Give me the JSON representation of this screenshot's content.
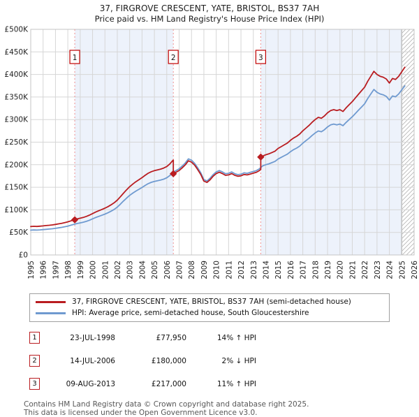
{
  "title": "37, FIRGROVE CRESCENT, YATE, BRISTOL, BS37 7AH",
  "subtitle": "Price paid vs. HM Land Registry's House Price Index (HPI)",
  "colors": {
    "price_line": "#b91c20",
    "hpi_line": "#6f9ad0",
    "sale_dashed_line": "#f0908f",
    "shade_band": "#edf2fb",
    "grid": "#d6d6d6",
    "plot_border": "#c4c4c4",
    "hatch_line": "#b5b5b5",
    "hatch_edge": "#8f8f8f",
    "axis_text": "#222222",
    "marker_box_border": "#c00000"
  },
  "chart_data": {
    "type": "line",
    "title": "37, FIRGROVE CRESCENT, YATE, BRISTOL, BS37 7AH",
    "subtitle": "Price paid vs. HM Land Registry's House Price Index (HPI)",
    "xlabel": "",
    "ylabel": "Price (GBP)",
    "units": "thousands of pounds",
    "xlim": [
      1995,
      2026
    ],
    "ylim": [
      0,
      500
    ],
    "grid": true,
    "legend_position": "bottom",
    "x_ticks": [
      1995,
      1996,
      1997,
      1998,
      1999,
      2000,
      2001,
      2002,
      2003,
      2004,
      2005,
      2006,
      2007,
      2008,
      2009,
      2010,
      2011,
      2012,
      2013,
      2014,
      2015,
      2016,
      2017,
      2018,
      2019,
      2020,
      2021,
      2022,
      2023,
      2024,
      2025,
      2026
    ],
    "y_ticks": [
      [
        0,
        "£0"
      ],
      [
        50,
        "£50K"
      ],
      [
        100,
        "£100K"
      ],
      [
        150,
        "£150K"
      ],
      [
        200,
        "£200K"
      ],
      [
        250,
        "£250K"
      ],
      [
        300,
        "£300K"
      ],
      [
        350,
        "£350K"
      ],
      [
        400,
        "£400K"
      ],
      [
        450,
        "£450K"
      ],
      [
        500,
        "£500K"
      ]
    ],
    "shaded_bands": [
      [
        1998.56,
        2006.53
      ],
      [
        2013.6,
        2025.0
      ]
    ],
    "future_hatch": [
      2025.0,
      2026.0
    ],
    "sales": [
      {
        "num": "1",
        "year": 1998.56,
        "value": 77.95
      },
      {
        "num": "2",
        "year": 2006.53,
        "value": 180
      },
      {
        "num": "3",
        "year": 2013.6,
        "value": 217
      }
    ],
    "series": [
      {
        "id": "price_paid",
        "name": "37, FIRGROVE CRESCENT, YATE, BRISTOL, BS37 7AH (semi-detached house)",
        "color": "#b91c20",
        "points": [
          [
            1995.0,
            63.0
          ],
          [
            1995.25,
            63.5
          ],
          [
            1995.5,
            63.1
          ],
          [
            1995.75,
            63.7
          ],
          [
            1996.0,
            64.4
          ],
          [
            1996.25,
            65.1
          ],
          [
            1996.5,
            65.8
          ],
          [
            1996.75,
            66.6
          ],
          [
            1997.0,
            67.6
          ],
          [
            1997.25,
            68.9
          ],
          [
            1997.5,
            70.1
          ],
          [
            1997.75,
            71.7
          ],
          [
            1998.0,
            73.3
          ],
          [
            1998.25,
            75.6
          ],
          [
            1998.5,
            77.9
          ],
          [
            1998.75,
            79.8
          ],
          [
            1999.0,
            81.4
          ],
          [
            1999.25,
            83.2
          ],
          [
            1999.5,
            85.4
          ],
          [
            1999.75,
            88.2
          ],
          [
            2000.0,
            91.7
          ],
          [
            2000.25,
            95.1
          ],
          [
            2000.5,
            98.0
          ],
          [
            2000.75,
            100.8
          ],
          [
            2001.0,
            103.7
          ],
          [
            2001.25,
            107.1
          ],
          [
            2001.5,
            111.2
          ],
          [
            2001.75,
            115.7
          ],
          [
            2002.0,
            121.5
          ],
          [
            2002.25,
            128.9
          ],
          [
            2002.5,
            136.9
          ],
          [
            2002.75,
            144.4
          ],
          [
            2003.0,
            151.3
          ],
          [
            2003.25,
            157.0
          ],
          [
            2003.5,
            162.2
          ],
          [
            2003.75,
            166.7
          ],
          [
            2004.0,
            171.3
          ],
          [
            2004.25,
            176.5
          ],
          [
            2004.5,
            181.1
          ],
          [
            2004.75,
            184.5
          ],
          [
            2005.0,
            186.8
          ],
          [
            2005.25,
            188.5
          ],
          [
            2005.5,
            190.2
          ],
          [
            2005.75,
            192.5
          ],
          [
            2006.0,
            196.0
          ],
          [
            2006.25,
            201.7
          ],
          [
            2006.5,
            209.7
          ],
          [
            2006.53,
            210.0
          ],
          [
            2006.53,
            180.0
          ],
          [
            2006.75,
            183.3
          ],
          [
            2007.0,
            187.2
          ],
          [
            2007.25,
            193.1
          ],
          [
            2007.5,
            199.9
          ],
          [
            2007.75,
            208.7
          ],
          [
            2008.0,
            205.8
          ],
          [
            2008.25,
            199.0
          ],
          [
            2008.5,
            189.1
          ],
          [
            2008.75,
            178.4
          ],
          [
            2009.0,
            163.7
          ],
          [
            2009.25,
            160.7
          ],
          [
            2009.5,
            166.6
          ],
          [
            2009.75,
            174.4
          ],
          [
            2010.0,
            180.3
          ],
          [
            2010.25,
            183.3
          ],
          [
            2010.5,
            180.3
          ],
          [
            2010.75,
            176.4
          ],
          [
            2011.0,
            177.4
          ],
          [
            2011.25,
            180.3
          ],
          [
            2011.5,
            176.4
          ],
          [
            2011.75,
            174.4
          ],
          [
            2012.0,
            175.4
          ],
          [
            2012.25,
            178.4
          ],
          [
            2012.5,
            177.4
          ],
          [
            2012.75,
            179.3
          ],
          [
            2013.0,
            181.3
          ],
          [
            2013.25,
            183.3
          ],
          [
            2013.5,
            187.2
          ],
          [
            2013.6,
            189.5
          ],
          [
            2013.6,
            217.0
          ],
          [
            2013.75,
            219.0
          ],
          [
            2014.0,
            222.0
          ],
          [
            2014.25,
            224.0
          ],
          [
            2014.5,
            227.0
          ],
          [
            2014.75,
            230.0
          ],
          [
            2015.0,
            236.0
          ],
          [
            2015.25,
            240.0
          ],
          [
            2015.5,
            244.0
          ],
          [
            2015.75,
            248.0
          ],
          [
            2016.0,
            254.0
          ],
          [
            2016.25,
            259.0
          ],
          [
            2016.5,
            263.0
          ],
          [
            2016.75,
            268.0
          ],
          [
            2017.0,
            275.0
          ],
          [
            2017.25,
            281.0
          ],
          [
            2017.5,
            287.0
          ],
          [
            2017.75,
            294.0
          ],
          [
            2018.0,
            300.0
          ],
          [
            2018.25,
            305.0
          ],
          [
            2018.5,
            303.0
          ],
          [
            2018.75,
            308.0
          ],
          [
            2019.0,
            315.0
          ],
          [
            2019.25,
            320.0
          ],
          [
            2019.5,
            322.0
          ],
          [
            2019.75,
            320.0
          ],
          [
            2020.0,
            322.0
          ],
          [
            2020.25,
            318.0
          ],
          [
            2020.5,
            326.0
          ],
          [
            2020.75,
            333.0
          ],
          [
            2021.0,
            340.0
          ],
          [
            2021.25,
            348.0
          ],
          [
            2021.5,
            356.0
          ],
          [
            2021.75,
            364.0
          ],
          [
            2022.0,
            372.0
          ],
          [
            2022.25,
            385.0
          ],
          [
            2022.5,
            396.0
          ],
          [
            2022.75,
            407.0
          ],
          [
            2023.0,
            400.0
          ],
          [
            2023.25,
            396.0
          ],
          [
            2023.5,
            394.0
          ],
          [
            2023.75,
            390.0
          ],
          [
            2024.0,
            381.0
          ],
          [
            2024.25,
            391.0
          ],
          [
            2024.5,
            389.0
          ],
          [
            2024.75,
            396.0
          ],
          [
            2025.0,
            406.0
          ],
          [
            2025.25,
            416.0
          ]
        ]
      },
      {
        "id": "hpi",
        "name": "HPI: Average price, semi-detached house, South Gloucestershire",
        "color": "#6f9ad0",
        "points": [
          [
            1995.0,
            55.0
          ],
          [
            1995.25,
            55.4
          ],
          [
            1995.5,
            55.1
          ],
          [
            1995.75,
            55.6
          ],
          [
            1996.0,
            56.2
          ],
          [
            1996.25,
            56.8
          ],
          [
            1996.5,
            57.4
          ],
          [
            1996.75,
            58.1
          ],
          [
            1997.0,
            59.0
          ],
          [
            1997.25,
            60.1
          ],
          [
            1997.5,
            61.2
          ],
          [
            1997.75,
            62.6
          ],
          [
            1998.0,
            64.0
          ],
          [
            1998.25,
            66.0
          ],
          [
            1998.5,
            68.0
          ],
          [
            1998.75,
            69.6
          ],
          [
            1999.0,
            71.0
          ],
          [
            1999.25,
            72.6
          ],
          [
            1999.5,
            74.5
          ],
          [
            1999.75,
            77.0
          ],
          [
            2000.0,
            80.0
          ],
          [
            2000.25,
            83.0
          ],
          [
            2000.5,
            85.5
          ],
          [
            2000.75,
            88.0
          ],
          [
            2001.0,
            90.5
          ],
          [
            2001.25,
            93.5
          ],
          [
            2001.5,
            97.0
          ],
          [
            2001.75,
            101.0
          ],
          [
            2002.0,
            106.0
          ],
          [
            2002.25,
            112.5
          ],
          [
            2002.5,
            119.5
          ],
          [
            2002.75,
            126.0
          ],
          [
            2003.0,
            132.0
          ],
          [
            2003.25,
            137.0
          ],
          [
            2003.5,
            141.5
          ],
          [
            2003.75,
            145.5
          ],
          [
            2004.0,
            149.5
          ],
          [
            2004.25,
            154.0
          ],
          [
            2004.5,
            158.0
          ],
          [
            2004.75,
            161.0
          ],
          [
            2005.0,
            163.0
          ],
          [
            2005.25,
            164.5
          ],
          [
            2005.5,
            166.0
          ],
          [
            2005.75,
            168.0
          ],
          [
            2006.0,
            171.0
          ],
          [
            2006.25,
            176.0
          ],
          [
            2006.5,
            183.0
          ],
          [
            2006.75,
            187.0
          ],
          [
            2007.0,
            191.0
          ],
          [
            2007.25,
            197.0
          ],
          [
            2007.5,
            204.0
          ],
          [
            2007.75,
            213.0
          ],
          [
            2008.0,
            210.0
          ],
          [
            2008.25,
            203.0
          ],
          [
            2008.5,
            193.0
          ],
          [
            2008.75,
            182.0
          ],
          [
            2009.0,
            167.0
          ],
          [
            2009.25,
            164.0
          ],
          [
            2009.5,
            170.0
          ],
          [
            2009.75,
            178.0
          ],
          [
            2010.0,
            184.0
          ],
          [
            2010.25,
            187.0
          ],
          [
            2010.5,
            184.0
          ],
          [
            2010.75,
            180.0
          ],
          [
            2011.0,
            181.0
          ],
          [
            2011.25,
            184.0
          ],
          [
            2011.5,
            180.0
          ],
          [
            2011.75,
            178.0
          ],
          [
            2012.0,
            179.0
          ],
          [
            2012.25,
            182.0
          ],
          [
            2012.5,
            181.0
          ],
          [
            2012.75,
            183.0
          ],
          [
            2013.0,
            185.0
          ],
          [
            2013.25,
            187.0
          ],
          [
            2013.5,
            191.0
          ],
          [
            2013.75,
            197.3
          ],
          [
            2014.0,
            200.0
          ],
          [
            2014.25,
            201.8
          ],
          [
            2014.5,
            204.5
          ],
          [
            2014.75,
            207.2
          ],
          [
            2015.0,
            212.6
          ],
          [
            2015.25,
            216.2
          ],
          [
            2015.5,
            219.8
          ],
          [
            2015.75,
            223.4
          ],
          [
            2016.0,
            228.8
          ],
          [
            2016.25,
            233.3
          ],
          [
            2016.5,
            236.9
          ],
          [
            2016.75,
            241.4
          ],
          [
            2017.0,
            247.7
          ],
          [
            2017.25,
            253.2
          ],
          [
            2017.5,
            258.6
          ],
          [
            2017.75,
            264.9
          ],
          [
            2018.0,
            270.3
          ],
          [
            2018.25,
            274.8
          ],
          [
            2018.5,
            273.0
          ],
          [
            2018.75,
            277.5
          ],
          [
            2019.0,
            283.8
          ],
          [
            2019.25,
            288.3
          ],
          [
            2019.5,
            290.1
          ],
          [
            2019.75,
            288.3
          ],
          [
            2020.0,
            290.1
          ],
          [
            2020.25,
            286.5
          ],
          [
            2020.5,
            293.7
          ],
          [
            2020.75,
            300.0
          ],
          [
            2021.0,
            306.3
          ],
          [
            2021.25,
            313.5
          ],
          [
            2021.5,
            320.7
          ],
          [
            2021.75,
            327.9
          ],
          [
            2022.0,
            335.1
          ],
          [
            2022.25,
            346.8
          ],
          [
            2022.5,
            356.8
          ],
          [
            2022.75,
            366.7
          ],
          [
            2023.0,
            360.4
          ],
          [
            2023.25,
            356.8
          ],
          [
            2023.5,
            355.0
          ],
          [
            2023.75,
            351.4
          ],
          [
            2024.0,
            343.2
          ],
          [
            2024.25,
            352.3
          ],
          [
            2024.5,
            350.5
          ],
          [
            2024.75,
            356.8
          ],
          [
            2025.0,
            365.8
          ],
          [
            2025.25,
            374.8
          ]
        ]
      }
    ]
  },
  "legend": {
    "items": [
      {
        "label": "37, FIRGROVE CRESCENT, YATE, BRISTOL, BS37 7AH (semi-detached house)",
        "color": "#b91c20"
      },
      {
        "label": "HPI: Average price, semi-detached house, South Gloucestershire",
        "color": "#6f9ad0"
      }
    ]
  },
  "transactions": [
    {
      "num": "1",
      "date": "23-JUL-1998",
      "price": "£77,950",
      "hpi_delta": "14% ↑ HPI"
    },
    {
      "num": "2",
      "date": "14-JUL-2006",
      "price": "£180,000",
      "hpi_delta": "2% ↓ HPI"
    },
    {
      "num": "3",
      "date": "09-AUG-2013",
      "price": "£217,000",
      "hpi_delta": "11% ↑ HPI"
    }
  ],
  "footer": {
    "line1": "Contains HM Land Registry data © Crown copyright and database right 2025.",
    "line2": "This data is licensed under the Open Government Licence v3.0."
  }
}
